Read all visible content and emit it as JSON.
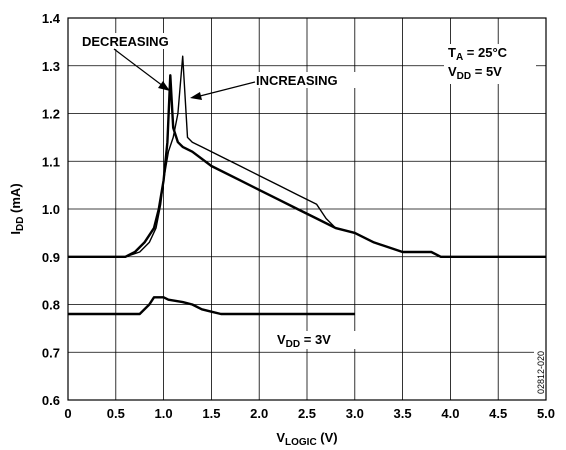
{
  "chart_data": {
    "type": "line",
    "xlabel": {
      "main": "V",
      "sub": "LOGIC",
      "unit": " (V)"
    },
    "ylabel": {
      "main": "I",
      "sub": "DD",
      "unit": " (mA)"
    },
    "xlim": [
      0,
      5
    ],
    "ylim": [
      0.6,
      1.4
    ],
    "x_ticks": [
      "0",
      "0.5",
      "1.0",
      "1.5",
      "2.0",
      "2.5",
      "3.0",
      "3.5",
      "4.0",
      "4.5",
      "5.0"
    ],
    "y_ticks": [
      "0.6",
      "0.7",
      "0.8",
      "0.9",
      "1.0",
      "1.1",
      "1.2",
      "1.3",
      "1.4"
    ],
    "grid": true,
    "legend": "none",
    "series": [
      {
        "name": "DECREASING",
        "points": [
          [
            0,
            0.9
          ],
          [
            0.55,
            0.9
          ],
          [
            0.6,
            0.9
          ],
          [
            0.7,
            0.91
          ],
          [
            0.8,
            0.93
          ],
          [
            0.9,
            0.96
          ],
          [
            0.95,
            1.0
          ],
          [
            1.0,
            1.06
          ],
          [
            1.04,
            1.14
          ],
          [
            1.07,
            1.28
          ],
          [
            1.1,
            1.17
          ],
          [
            1.15,
            1.14
          ],
          [
            1.2,
            1.13
          ],
          [
            1.3,
            1.12
          ],
          [
            1.5,
            1.09
          ],
          [
            1.8,
            1.06
          ],
          [
            2.0,
            1.04
          ],
          [
            2.2,
            1.02
          ],
          [
            2.4,
            1.0
          ],
          [
            2.6,
            0.98
          ],
          [
            2.8,
            0.96
          ],
          [
            3.0,
            0.95
          ],
          [
            3.2,
            0.93
          ],
          [
            3.5,
            0.91
          ],
          [
            3.8,
            0.91
          ],
          [
            3.9,
            0.9
          ],
          [
            5.0,
            0.9
          ]
        ]
      },
      {
        "name": "INCREASING",
        "points": [
          [
            0,
            0.9
          ],
          [
            0.6,
            0.9
          ],
          [
            0.75,
            0.91
          ],
          [
            0.85,
            0.93
          ],
          [
            0.92,
            0.96
          ],
          [
            0.97,
            1.01
          ],
          [
            1.0,
            1.06
          ],
          [
            1.05,
            1.12
          ],
          [
            1.1,
            1.15
          ],
          [
            1.15,
            1.2
          ],
          [
            1.2,
            1.32
          ],
          [
            1.25,
            1.15
          ],
          [
            1.3,
            1.14
          ],
          [
            1.4,
            1.13
          ],
          [
            1.6,
            1.11
          ],
          [
            1.8,
            1.09
          ],
          [
            2.0,
            1.07
          ],
          [
            2.2,
            1.05
          ],
          [
            2.4,
            1.03
          ],
          [
            2.6,
            1.01
          ],
          [
            2.7,
            0.98
          ],
          [
            2.8,
            0.96
          ],
          [
            3.0,
            0.95
          ],
          [
            3.2,
            0.93
          ],
          [
            3.5,
            0.91
          ],
          [
            3.8,
            0.91
          ],
          [
            3.9,
            0.9
          ],
          [
            5.0,
            0.9
          ]
        ]
      },
      {
        "name": "VDD = 3V",
        "points": [
          [
            0,
            0.78
          ],
          [
            0.75,
            0.78
          ],
          [
            0.85,
            0.8
          ],
          [
            0.9,
            0.815
          ],
          [
            1.0,
            0.815
          ],
          [
            1.05,
            0.81
          ],
          [
            1.2,
            0.805
          ],
          [
            1.3,
            0.8
          ],
          [
            1.4,
            0.79
          ],
          [
            1.5,
            0.785
          ],
          [
            1.6,
            0.78
          ],
          [
            3.0,
            0.78
          ]
        ]
      }
    ],
    "annotations": {
      "decreasing": "DECREASING",
      "increasing": "INCREASING",
      "vdd3": {
        "main": "V",
        "sub": "DD",
        "rest": " = 3V"
      },
      "ta": {
        "main": "T",
        "sub": "A",
        "rest": " = 25°C"
      },
      "vdd5": {
        "main": "V",
        "sub": "DD",
        "rest": " = 5V"
      },
      "figure_code": "02812-020"
    }
  }
}
